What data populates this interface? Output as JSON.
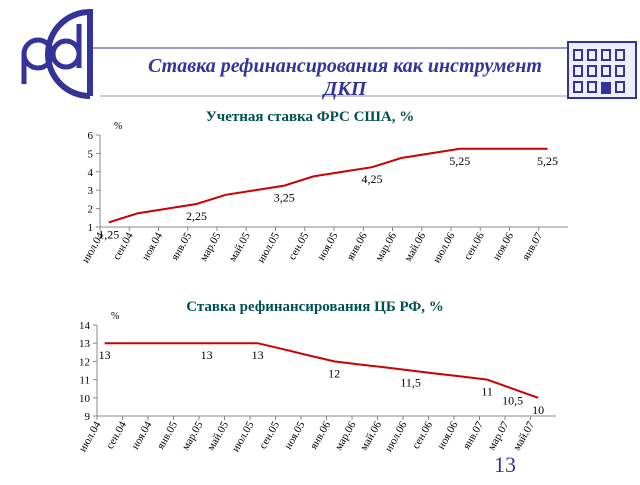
{
  "header": {
    "title": "Ставка рефинансирования как инструмент ДКП"
  },
  "page_number": "13",
  "chart_data": [
    {
      "type": "line",
      "title": "Учетная ставка ФРС США, %",
      "y_label": "%",
      "color": "#cc0000",
      "categories": [
        "июл.04",
        "сен.04",
        "ноя.04",
        "янв.05",
        "мар.05",
        "май.05",
        "июл.05",
        "сен.05",
        "ноя.05",
        "янв.06",
        "мар.06",
        "май.06",
        "июл.06",
        "сен.06",
        "ноя.06",
        "янв.07"
      ],
      "values": [
        1.25,
        1.75,
        2.0,
        2.25,
        2.75,
        3.0,
        3.25,
        3.75,
        4.0,
        4.25,
        4.75,
        5.0,
        5.25,
        5.25,
        5.25,
        5.25
      ],
      "value_labels": [
        "1,25",
        null,
        null,
        "2,25",
        null,
        null,
        "3,25",
        null,
        null,
        "4,25",
        null,
        null,
        "5,25",
        null,
        null,
        "5,25"
      ],
      "ylim": [
        1,
        6
      ],
      "yticks": [
        1,
        2,
        3,
        4,
        5,
        6
      ]
    },
    {
      "type": "line",
      "title": "Ставка рефинансирования ЦБ РФ, %",
      "y_label": "%",
      "color": "#cc0000",
      "categories": [
        "июл.04",
        "сен.04",
        "ноя.04",
        "янв.05",
        "мар.05",
        "май.05",
        "июл.05",
        "сен.05",
        "ноя.05",
        "янв.06",
        "мар.06",
        "май.06",
        "июл.06",
        "сен.06",
        "ноя.06",
        "янв.07",
        "мар.07",
        "май.07"
      ],
      "values": [
        13,
        13,
        13,
        13,
        13,
        13,
        13,
        12.67,
        12.33,
        12,
        11.83,
        11.67,
        11.5,
        11.33,
        11.17,
        11,
        10.5,
        10
      ],
      "value_labels": [
        "13",
        null,
        null,
        null,
        "13",
        null,
        "13",
        null,
        null,
        "12",
        null,
        null,
        "11,5",
        null,
        null,
        "11",
        "10,5",
        "10"
      ],
      "ylim": [
        9,
        14
      ],
      "yticks": [
        9,
        10,
        11,
        12,
        13,
        14
      ]
    }
  ]
}
